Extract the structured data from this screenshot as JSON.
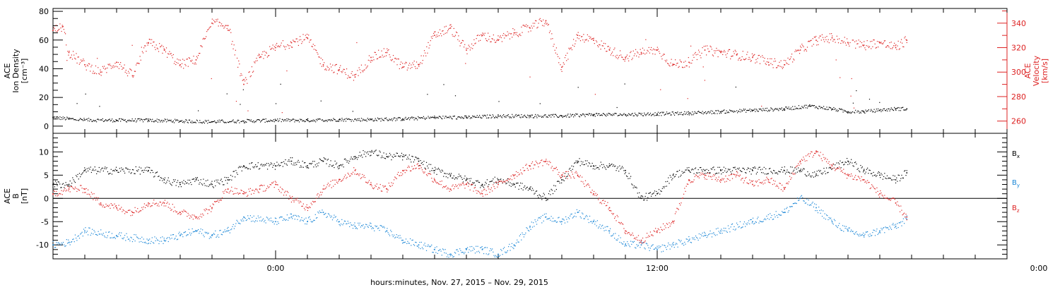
{
  "chart_data": [
    {
      "type": "scatter",
      "panel": "top",
      "left_axis": {
        "label_lines": [
          "ACE",
          "Ion Density",
          "[cm⁻³]"
        ],
        "ylim": [
          -5,
          82
        ],
        "major_ticks": [
          0,
          20,
          40,
          60,
          80
        ],
        "minor_step": 5,
        "color": "#000000"
      },
      "right_axis": {
        "label_lines": [
          "ACE",
          "Velocity",
          "[km/s]"
        ],
        "ylim": [
          250,
          352
        ],
        "major_ticks": [
          260,
          280,
          300,
          320,
          340
        ],
        "minor_step": 10,
        "color": "#dd2222"
      },
      "series": [
        {
          "axis": "left",
          "color": "#000000",
          "points": [
            [
              -7.0,
              6.0
            ],
            [
              -6.5,
              5.0
            ],
            [
              -6.0,
              4.3
            ],
            [
              -5.0,
              4.0
            ],
            [
              -4.0,
              4.0
            ],
            [
              -3.0,
              3.5
            ],
            [
              -2.0,
              3.0
            ],
            [
              -1.0,
              3.5
            ],
            [
              0.0,
              4.0
            ],
            [
              1.0,
              4.0
            ],
            [
              2.0,
              4.5
            ],
            [
              3.0,
              4.5
            ],
            [
              4.0,
              5.0
            ],
            [
              5.0,
              6.0
            ],
            [
              6.0,
              6.0
            ],
            [
              7.0,
              7.0
            ],
            [
              8.0,
              7.0
            ],
            [
              9.0,
              7.0
            ],
            [
              10.0,
              8.0
            ],
            [
              11.0,
              8.0
            ],
            [
              12.0,
              8.5
            ],
            [
              13.0,
              9.0
            ],
            [
              14.0,
              10.0
            ],
            [
              15.0,
              11.0
            ],
            [
              16.0,
              12.0
            ],
            [
              16.8,
              14.0
            ],
            [
              17.5,
              12.0
            ],
            [
              18.0,
              10.0
            ],
            [
              18.5,
              10.0
            ],
            [
              19.0,
              11.0
            ],
            [
              19.5,
              12.0
            ],
            [
              19.85,
              12.0
            ]
          ]
        },
        {
          "axis": "right",
          "color": "#dd2222",
          "points": [
            [
              -7.0,
              334
            ],
            [
              -6.7,
              337
            ],
            [
              -6.5,
              316
            ],
            [
              -6.0,
              306
            ],
            [
              -5.5,
              300
            ],
            [
              -5.0,
              308
            ],
            [
              -4.5,
              297
            ],
            [
              -4.0,
              324
            ],
            [
              -3.5,
              318
            ],
            [
              -3.0,
              306
            ],
            [
              -2.5,
              310
            ],
            [
              -2.0,
              340
            ],
            [
              -1.5,
              338
            ],
            [
              -1.0,
              290
            ],
            [
              -0.5,
              312
            ],
            [
              0.0,
              320
            ],
            [
              0.5,
              324
            ],
            [
              1.0,
              328
            ],
            [
              1.5,
              306
            ],
            [
              2.0,
              302
            ],
            [
              2.5,
              296
            ],
            [
              3.0,
              312
            ],
            [
              3.5,
              316
            ],
            [
              4.0,
              304
            ],
            [
              4.5,
              306
            ],
            [
              5.0,
              330
            ],
            [
              5.5,
              336
            ],
            [
              6.0,
              318
            ],
            [
              6.5,
              330
            ],
            [
              7.0,
              326
            ],
            [
              7.5,
              332
            ],
            [
              8.0,
              336
            ],
            [
              8.5,
              342
            ],
            [
              9.0,
              304
            ],
            [
              9.5,
              330
            ],
            [
              10.0,
              326
            ],
            [
              10.5,
              318
            ],
            [
              11.0,
              312
            ],
            [
              11.5,
              316
            ],
            [
              12.0,
              318
            ],
            [
              12.5,
              306
            ],
            [
              13.0,
              308
            ],
            [
              13.5,
              318
            ],
            [
              14.0,
              316
            ],
            [
              14.5,
              314
            ],
            [
              15.0,
              312
            ],
            [
              15.5,
              308
            ],
            [
              16.0,
              306
            ],
            [
              16.5,
              318
            ],
            [
              17.0,
              326
            ],
            [
              17.5,
              328
            ],
            [
              18.0,
              324
            ],
            [
              18.5,
              322
            ],
            [
              19.0,
              324
            ],
            [
              19.5,
              320
            ],
            [
              19.85,
              326
            ]
          ]
        }
      ]
    },
    {
      "type": "scatter",
      "panel": "bottom",
      "left_axis": {
        "label_lines": [
          "ACE",
          "B",
          "[nT]"
        ],
        "ylim": [
          -13,
          14
        ],
        "major_ticks": [
          -10,
          -5,
          0,
          5,
          10
        ],
        "minor_step": 1
      },
      "zero_line": true,
      "legend": [
        {
          "name": "B",
          "sub": "x",
          "color": "#000000"
        },
        {
          "name": "B",
          "sub": "y",
          "color": "#1a86d6"
        },
        {
          "name": "B",
          "sub": "z",
          "color": "#dd2222"
        }
      ],
      "series": [
        {
          "name": "Bx",
          "color": "#000000",
          "points": [
            [
              -7.0,
              3.0
            ],
            [
              -6.5,
              3.0
            ],
            [
              -6.0,
              6.0
            ],
            [
              -5.0,
              6.0
            ],
            [
              -4.0,
              6.0
            ],
            [
              -3.5,
              4.0
            ],
            [
              -3.0,
              3.0
            ],
            [
              -2.5,
              4.0
            ],
            [
              -2.0,
              3.0
            ],
            [
              -1.5,
              4.0
            ],
            [
              -1.0,
              7.0
            ],
            [
              0.0,
              7.0
            ],
            [
              0.5,
              8.0
            ],
            [
              1.0,
              7.0
            ],
            [
              1.5,
              8.0
            ],
            [
              2.0,
              7.0
            ],
            [
              2.5,
              9.0
            ],
            [
              3.0,
              10.0
            ],
            [
              3.5,
              9.0
            ],
            [
              4.0,
              9.0
            ],
            [
              4.5,
              8.0
            ],
            [
              5.0,
              6.0
            ],
            [
              5.5,
              5.0
            ],
            [
              6.0,
              4.0
            ],
            [
              6.5,
              3.0
            ],
            [
              7.0,
              4.0
            ],
            [
              7.5,
              3.0
            ],
            [
              8.0,
              2.0
            ],
            [
              8.5,
              0.0
            ],
            [
              9.0,
              4.0
            ],
            [
              9.5,
              8.0
            ],
            [
              10.0,
              7.0
            ],
            [
              10.5,
              7.0
            ],
            [
              11.0,
              6.0
            ],
            [
              11.5,
              0.0
            ],
            [
              12.0,
              1.0
            ],
            [
              12.5,
              5.0
            ],
            [
              13.0,
              6.0
            ],
            [
              13.5,
              6.0
            ],
            [
              14.0,
              6.0
            ],
            [
              15.0,
              6.0
            ],
            [
              16.0,
              6.0
            ],
            [
              16.5,
              6.0
            ],
            [
              17.0,
              5.0
            ],
            [
              18.0,
              8.0
            ],
            [
              18.5,
              6.0
            ],
            [
              19.0,
              5.0
            ],
            [
              19.5,
              4.0
            ],
            [
              19.85,
              5.5
            ]
          ]
        },
        {
          "name": "By",
          "color": "#1a86d6",
          "points": [
            [
              -7.0,
              -10.0
            ],
            [
              -6.5,
              -9.5
            ],
            [
              -6.0,
              -7.0
            ],
            [
              -5.0,
              -8.0
            ],
            [
              -4.0,
              -9.0
            ],
            [
              -3.5,
              -9.0
            ],
            [
              -3.0,
              -8.0
            ],
            [
              -2.5,
              -7.0
            ],
            [
              -2.0,
              -8.0
            ],
            [
              -1.5,
              -7.0
            ],
            [
              -1.0,
              -4.0
            ],
            [
              0.0,
              -5.0
            ],
            [
              0.5,
              -4.0
            ],
            [
              1.0,
              -5.0
            ],
            [
              1.5,
              -3.0
            ],
            [
              2.0,
              -5.0
            ],
            [
              2.5,
              -6.0
            ],
            [
              3.0,
              -6.0
            ],
            [
              3.5,
              -7.0
            ],
            [
              4.0,
              -9.0
            ],
            [
              4.5,
              -10.0
            ],
            [
              5.0,
              -11.0
            ],
            [
              5.5,
              -12.0
            ],
            [
              6.0,
              -11.0
            ],
            [
              6.5,
              -11.0
            ],
            [
              7.0,
              -12.0
            ],
            [
              7.5,
              -10.0
            ],
            [
              8.0,
              -6.0
            ],
            [
              8.5,
              -4.0
            ],
            [
              9.0,
              -5.0
            ],
            [
              9.5,
              -3.0
            ],
            [
              10.0,
              -5.0
            ],
            [
              10.5,
              -7.0
            ],
            [
              11.0,
              -10.0
            ],
            [
              11.5,
              -10.0
            ],
            [
              12.0,
              -11.0
            ],
            [
              12.5,
              -10.0
            ],
            [
              13.0,
              -9.0
            ],
            [
              13.5,
              -8.0
            ],
            [
              14.0,
              -7.0
            ],
            [
              15.0,
              -5.0
            ],
            [
              16.0,
              -3.0
            ],
            [
              16.5,
              0.0
            ],
            [
              17.0,
              -2.0
            ],
            [
              17.5,
              -5.0
            ],
            [
              18.0,
              -7.0
            ],
            [
              18.5,
              -8.0
            ],
            [
              19.0,
              -7.0
            ],
            [
              19.5,
              -6.0
            ],
            [
              19.85,
              -4.5
            ]
          ]
        },
        {
          "name": "Bz",
          "color": "#dd2222",
          "points": [
            [
              -7.0,
              1.0
            ],
            [
              -6.5,
              2.0
            ],
            [
              -6.0,
              2.0
            ],
            [
              -5.5,
              -1.0
            ],
            [
              -5.0,
              -2.0
            ],
            [
              -4.5,
              -3.0
            ],
            [
              -4.0,
              -1.0
            ],
            [
              -3.5,
              -1.0
            ],
            [
              -3.0,
              -3.0
            ],
            [
              -2.5,
              -4.0
            ],
            [
              -2.0,
              -2.0
            ],
            [
              -1.5,
              2.0
            ],
            [
              -1.0,
              1.0
            ],
            [
              -0.5,
              2.0
            ],
            [
              0.0,
              3.0
            ],
            [
              0.5,
              0.0
            ],
            [
              1.0,
              -2.0
            ],
            [
              1.5,
              2.0
            ],
            [
              2.0,
              4.0
            ],
            [
              2.5,
              6.0
            ],
            [
              3.0,
              3.0
            ],
            [
              3.5,
              2.0
            ],
            [
              4.0,
              6.0
            ],
            [
              4.5,
              7.0
            ],
            [
              5.0,
              4.0
            ],
            [
              5.5,
              2.0
            ],
            [
              6.0,
              3.0
            ],
            [
              6.5,
              1.0
            ],
            [
              7.0,
              3.0
            ],
            [
              7.5,
              5.0
            ],
            [
              8.0,
              7.0
            ],
            [
              8.5,
              8.0
            ],
            [
              9.0,
              5.0
            ],
            [
              9.5,
              5.0
            ],
            [
              10.0,
              1.0
            ],
            [
              10.5,
              -2.0
            ],
            [
              11.0,
              -7.0
            ],
            [
              11.5,
              -9.0
            ],
            [
              12.0,
              -7.0
            ],
            [
              12.5,
              -5.0
            ],
            [
              13.0,
              4.0
            ],
            [
              13.5,
              5.0
            ],
            [
              14.0,
              4.0
            ],
            [
              14.5,
              5.0
            ],
            [
              15.0,
              3.0
            ],
            [
              15.5,
              4.0
            ],
            [
              16.0,
              2.0
            ],
            [
              16.5,
              8.0
            ],
            [
              17.0,
              10.0
            ],
            [
              17.5,
              7.0
            ],
            [
              18.0,
              5.0
            ],
            [
              18.5,
              4.0
            ],
            [
              19.0,
              1.0
            ],
            [
              19.5,
              -1.0
            ],
            [
              19.85,
              -4.0
            ]
          ]
        }
      ]
    }
  ],
  "x_axis": {
    "range_hours": [
      -7.0,
      23.0
    ],
    "major_ticks": [
      0,
      12,
      24
    ],
    "major_tick_labels": [
      "0:00",
      "12:00",
      "0:00"
    ],
    "minor_step_hours": 1,
    "title": "hours:minutes, Nov. 27, 2015 – Nov. 29, 2015"
  }
}
